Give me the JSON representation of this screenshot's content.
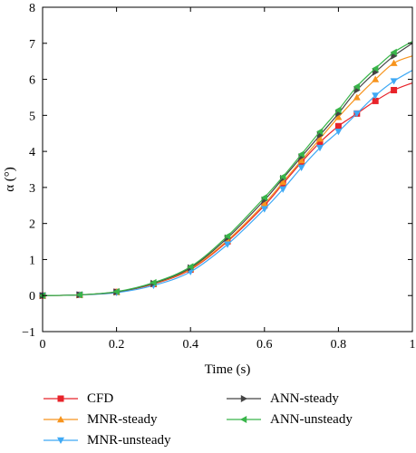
{
  "chart_data": {
    "type": "line",
    "xlabel": "Time (s)",
    "ylabel": "α (°)",
    "xlim": [
      0,
      1
    ],
    "ylim": [
      -1,
      8
    ],
    "xticks": [
      0,
      0.2,
      0.4,
      0.6,
      0.8,
      1
    ],
    "xtick_labels": [
      "0",
      "0.2",
      "0.4",
      "0.6",
      "0.8",
      "1"
    ],
    "yticks": [
      -1,
      0,
      1,
      2,
      3,
      4,
      5,
      6,
      7,
      8
    ],
    "ytick_labels": [
      "−1",
      "0",
      "1",
      "2",
      "3",
      "4",
      "5",
      "6",
      "7",
      "8"
    ],
    "grid": false,
    "legend_position": "bottom",
    "series": [
      {
        "name": "CFD",
        "color": "#e8232a",
        "marker": "square",
        "x": [
          0,
          0.1,
          0.2,
          0.3,
          0.4,
          0.5,
          0.6,
          0.65,
          0.7,
          0.75,
          0.8,
          0.85,
          0.9,
          0.95,
          1.0
        ],
        "values": [
          0,
          0.02,
          0.1,
          0.32,
          0.72,
          1.5,
          2.5,
          3.1,
          3.7,
          4.25,
          4.7,
          5.05,
          5.4,
          5.7,
          5.9
        ]
      },
      {
        "name": "MNR-steady",
        "color": "#f7941d",
        "marker": "triangle-up",
        "x": [
          0,
          0.1,
          0.2,
          0.3,
          0.4,
          0.5,
          0.6,
          0.65,
          0.7,
          0.75,
          0.8,
          0.85,
          0.9,
          0.95,
          1.0
        ],
        "values": [
          0,
          0.02,
          0.1,
          0.33,
          0.74,
          1.53,
          2.55,
          3.15,
          3.75,
          4.35,
          4.95,
          5.5,
          6.0,
          6.45,
          6.65
        ]
      },
      {
        "name": "MNR-unsteady",
        "color": "#3fa9f5",
        "marker": "triangle-down",
        "x": [
          0,
          0.1,
          0.2,
          0.3,
          0.4,
          0.5,
          0.6,
          0.65,
          0.7,
          0.75,
          0.8,
          0.85,
          0.9,
          0.95,
          1.0
        ],
        "values": [
          0,
          0.02,
          0.08,
          0.28,
          0.66,
          1.42,
          2.4,
          2.95,
          3.55,
          4.1,
          4.55,
          5.05,
          5.55,
          5.95,
          6.25
        ]
      },
      {
        "name": "ANN-steady",
        "color": "#444444",
        "marker": "triangle-right",
        "x": [
          0,
          0.1,
          0.2,
          0.3,
          0.4,
          0.5,
          0.6,
          0.65,
          0.7,
          0.75,
          0.8,
          0.85,
          0.9,
          0.95,
          1.0
        ],
        "values": [
          0,
          0.02,
          0.1,
          0.34,
          0.77,
          1.6,
          2.65,
          3.25,
          3.85,
          4.45,
          5.05,
          5.7,
          6.2,
          6.65,
          7.0
        ]
      },
      {
        "name": "ANN-unsteady",
        "color": "#39b54a",
        "marker": "triangle-left",
        "x": [
          0,
          0.1,
          0.2,
          0.3,
          0.4,
          0.5,
          0.6,
          0.65,
          0.7,
          0.75,
          0.8,
          0.85,
          0.9,
          0.95,
          1.0
        ],
        "values": [
          0,
          0.02,
          0.11,
          0.36,
          0.8,
          1.65,
          2.72,
          3.3,
          3.92,
          4.55,
          5.15,
          5.8,
          6.3,
          6.75,
          7.05
        ]
      }
    ]
  }
}
